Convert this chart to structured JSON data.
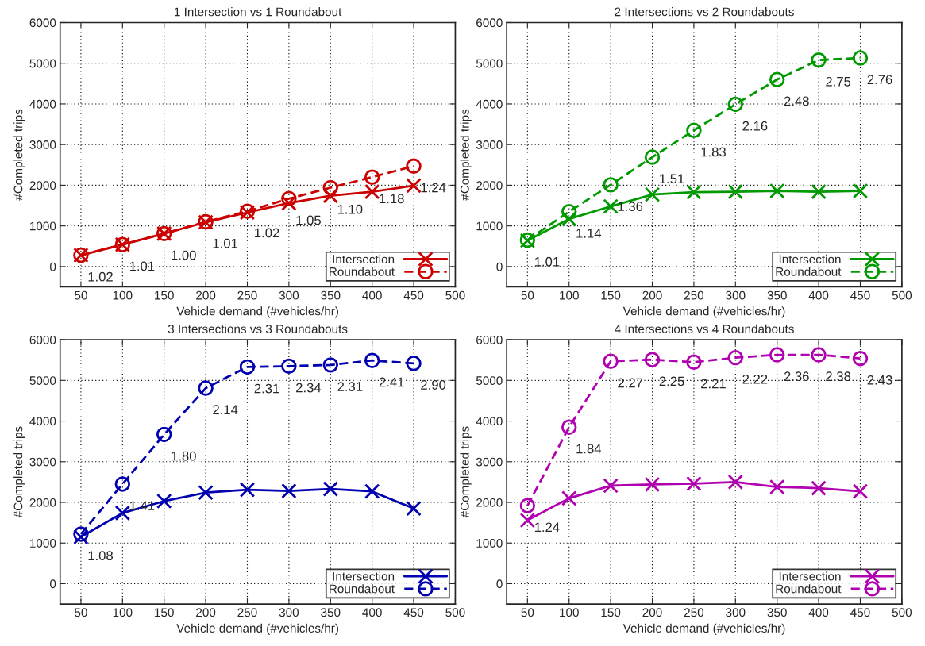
{
  "chart_data": [
    {
      "type": "line",
      "title": "1 Intersection vs 1 Roundabout",
      "xlabel": "Vehicle demand (#vehicles/hr)",
      "ylabel": "#Completed trips",
      "x": [
        50,
        100,
        150,
        200,
        250,
        300,
        350,
        400,
        450
      ],
      "xlim": [
        25,
        500
      ],
      "xticks": [
        50,
        100,
        150,
        200,
        250,
        300,
        350,
        400,
        450,
        500
      ],
      "ylim": [
        -500,
        6000
      ],
      "yticks": [
        0,
        1000,
        2000,
        3000,
        4000,
        5000,
        6000
      ],
      "grid": true,
      "legend": "bottom right",
      "series": [
        {
          "name": "Intersection",
          "color": "#cc0000",
          "marker": "cross",
          "line_style": "solid",
          "values": [
            280,
            540,
            810,
            1090,
            1330,
            1560,
            1740,
            1840,
            1990
          ]
        },
        {
          "name": "Roundabout",
          "color": "#cc0000",
          "marker": "circle",
          "line_style": "dashed",
          "values": [
            280,
            540,
            810,
            1100,
            1360,
            1670,
            1940,
            2200,
            2470
          ]
        }
      ],
      "annotations": [
        {
          "text": "1.02",
          "x": 50,
          "y": 280
        },
        {
          "text": "1.01",
          "x": 100,
          "y": 540
        },
        {
          "text": "1.00",
          "x": 150,
          "y": 810
        },
        {
          "text": "1.01",
          "x": 200,
          "y": 1100
        },
        {
          "text": "1.02",
          "x": 250,
          "y": 1360
        },
        {
          "text": "1.05",
          "x": 300,
          "y": 1670
        },
        {
          "text": "1.10",
          "x": 350,
          "y": 1940
        },
        {
          "text": "1.18",
          "x": 400,
          "y": 2200
        },
        {
          "text": "1.24",
          "x": 450,
          "y": 2470
        }
      ]
    },
    {
      "type": "line",
      "title": "2 Intersections vs 2 Roundabouts",
      "xlabel": "Vehicle demand (#vehicles/hr)",
      "ylabel": "#Completed trips",
      "x": [
        50,
        100,
        150,
        200,
        250,
        300,
        350,
        400,
        450
      ],
      "xlim": [
        25,
        500
      ],
      "xticks": [
        50,
        100,
        150,
        200,
        250,
        300,
        350,
        400,
        450,
        500
      ],
      "ylim": [
        -500,
        6000
      ],
      "yticks": [
        0,
        1000,
        2000,
        3000,
        4000,
        5000,
        6000
      ],
      "grid": true,
      "legend": "bottom right",
      "series": [
        {
          "name": "Intersection",
          "color": "#009900",
          "marker": "cross",
          "line_style": "solid",
          "values": [
            640,
            1170,
            1480,
            1770,
            1830,
            1840,
            1860,
            1840,
            1860
          ]
        },
        {
          "name": "Roundabout",
          "color": "#009900",
          "marker": "circle",
          "line_style": "dashed",
          "values": [
            650,
            1350,
            2010,
            2690,
            3350,
            3990,
            4600,
            5080,
            5130
          ]
        }
      ],
      "annotations": [
        {
          "text": "1.01",
          "x": 50,
          "y": 650
        },
        {
          "text": "1.14",
          "x": 100,
          "y": 1350
        },
        {
          "text": "1.36",
          "x": 150,
          "y": 2010
        },
        {
          "text": "1.51",
          "x": 200,
          "y": 2690
        },
        {
          "text": "1.83",
          "x": 250,
          "y": 3350
        },
        {
          "text": "2.16",
          "x": 300,
          "y": 3990
        },
        {
          "text": "2.48",
          "x": 350,
          "y": 4600
        },
        {
          "text": "2.75",
          "x": 400,
          "y": 5080
        },
        {
          "text": "2.76",
          "x": 450,
          "y": 5130
        }
      ]
    },
    {
      "type": "line",
      "title": "3 Intersections vs 3 Roundabouts",
      "xlabel": "Vehicle demand (#vehicles/hr)",
      "ylabel": "#Completed trips",
      "x": [
        50,
        100,
        150,
        200,
        250,
        300,
        350,
        400,
        450
      ],
      "xlim": [
        25,
        500
      ],
      "xticks": [
        50,
        100,
        150,
        200,
        250,
        300,
        350,
        400,
        450,
        500
      ],
      "ylim": [
        -500,
        6000
      ],
      "yticks": [
        0,
        1000,
        2000,
        3000,
        4000,
        5000,
        6000
      ],
      "grid": true,
      "legend": "bottom right",
      "series": [
        {
          "name": "Intersection",
          "color": "#0000b0",
          "marker": "cross",
          "line_style": "solid",
          "values": [
            1150,
            1740,
            2030,
            2240,
            2310,
            2280,
            2330,
            2270,
            1850
          ]
        },
        {
          "name": "Roundabout",
          "color": "#0000b0",
          "marker": "circle",
          "line_style": "dashed",
          "values": [
            1220,
            2450,
            3670,
            4810,
            5330,
            5350,
            5380,
            5490,
            5420
          ]
        }
      ],
      "annotations": [
        {
          "text": "1.08",
          "x": 50,
          "y": 1220
        },
        {
          "text": "1.41",
          "x": 100,
          "y": 2450
        },
        {
          "text": "1.80",
          "x": 150,
          "y": 3670
        },
        {
          "text": "2.14",
          "x": 200,
          "y": 4810
        },
        {
          "text": "2.31",
          "x": 250,
          "y": 5330
        },
        {
          "text": "2.34",
          "x": 300,
          "y": 5350
        },
        {
          "text": "2.31",
          "x": 350,
          "y": 5380
        },
        {
          "text": "2.41",
          "x": 400,
          "y": 5490
        },
        {
          "text": "2.90",
          "x": 450,
          "y": 5420
        }
      ]
    },
    {
      "type": "line",
      "title": "4 Intersections vs 4 Roundabouts",
      "xlabel": "Vehicle demand (#vehicles/hr)",
      "ylabel": "#Completed trips",
      "x": [
        50,
        100,
        150,
        200,
        250,
        300,
        350,
        400,
        450
      ],
      "xlim": [
        25,
        500
      ],
      "xticks": [
        50,
        100,
        150,
        200,
        250,
        300,
        350,
        400,
        450,
        500
      ],
      "ylim": [
        -500,
        6000
      ],
      "yticks": [
        0,
        1000,
        2000,
        3000,
        4000,
        5000,
        6000
      ],
      "grid": true,
      "legend": "bottom right",
      "series": [
        {
          "name": "Intersection",
          "color": "#b000b0",
          "marker": "cross",
          "line_style": "solid",
          "values": [
            1560,
            2100,
            2410,
            2440,
            2460,
            2500,
            2380,
            2350,
            2270
          ]
        },
        {
          "name": "Roundabout",
          "color": "#b000b0",
          "marker": "circle",
          "line_style": "dashed",
          "values": [
            1920,
            3850,
            5470,
            5510,
            5450,
            5560,
            5630,
            5630,
            5540
          ]
        }
      ],
      "annotations": [
        {
          "text": "1.24",
          "x": 50,
          "y": 1920
        },
        {
          "text": "1.84",
          "x": 100,
          "y": 3850
        },
        {
          "text": "2.27",
          "x": 150,
          "y": 5470
        },
        {
          "text": "2.25",
          "x": 200,
          "y": 5510
        },
        {
          "text": "2.21",
          "x": 250,
          "y": 5450
        },
        {
          "text": "2.22",
          "x": 300,
          "y": 5560
        },
        {
          "text": "2.36",
          "x": 350,
          "y": 5630
        },
        {
          "text": "2.38",
          "x": 400,
          "y": 5630
        },
        {
          "text": "2.43",
          "x": 450,
          "y": 5540
        }
      ]
    }
  ]
}
